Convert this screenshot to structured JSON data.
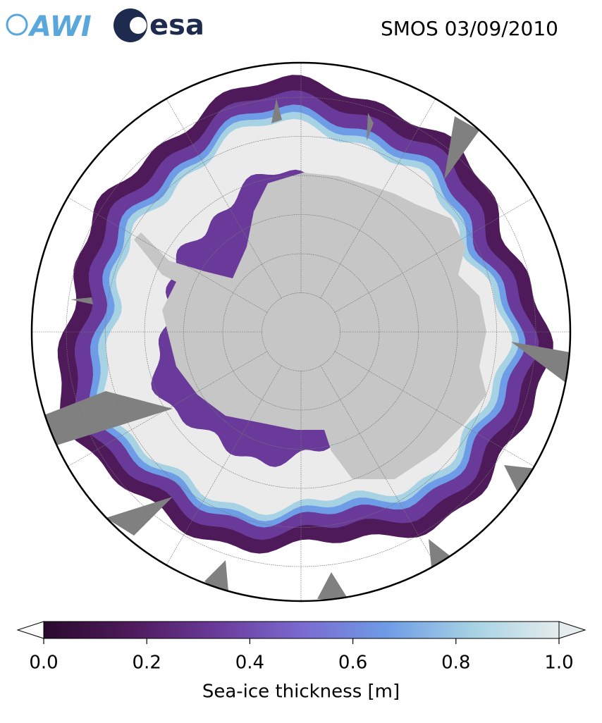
{
  "header": {
    "logo_awi": "AWI",
    "logo_esa": "esa",
    "title": "SMOS 03/09/2010"
  },
  "colorbar": {
    "label": "Sea-ice thickness [m]",
    "lim": [
      0,
      1
    ],
    "ticks": [
      {
        "value": 0,
        "label": "0.0"
      },
      0.2,
      0.4,
      0.6,
      0.8,
      {
        "value": 1,
        "label": "1.0"
      }
    ],
    "colors": [
      "#2a0a2e",
      "#4e1a5a",
      "#6a3a9a",
      "#7a6ad0",
      "#6f9ce6",
      "#a6d2e4",
      "#e4ecec"
    ]
  }
}
